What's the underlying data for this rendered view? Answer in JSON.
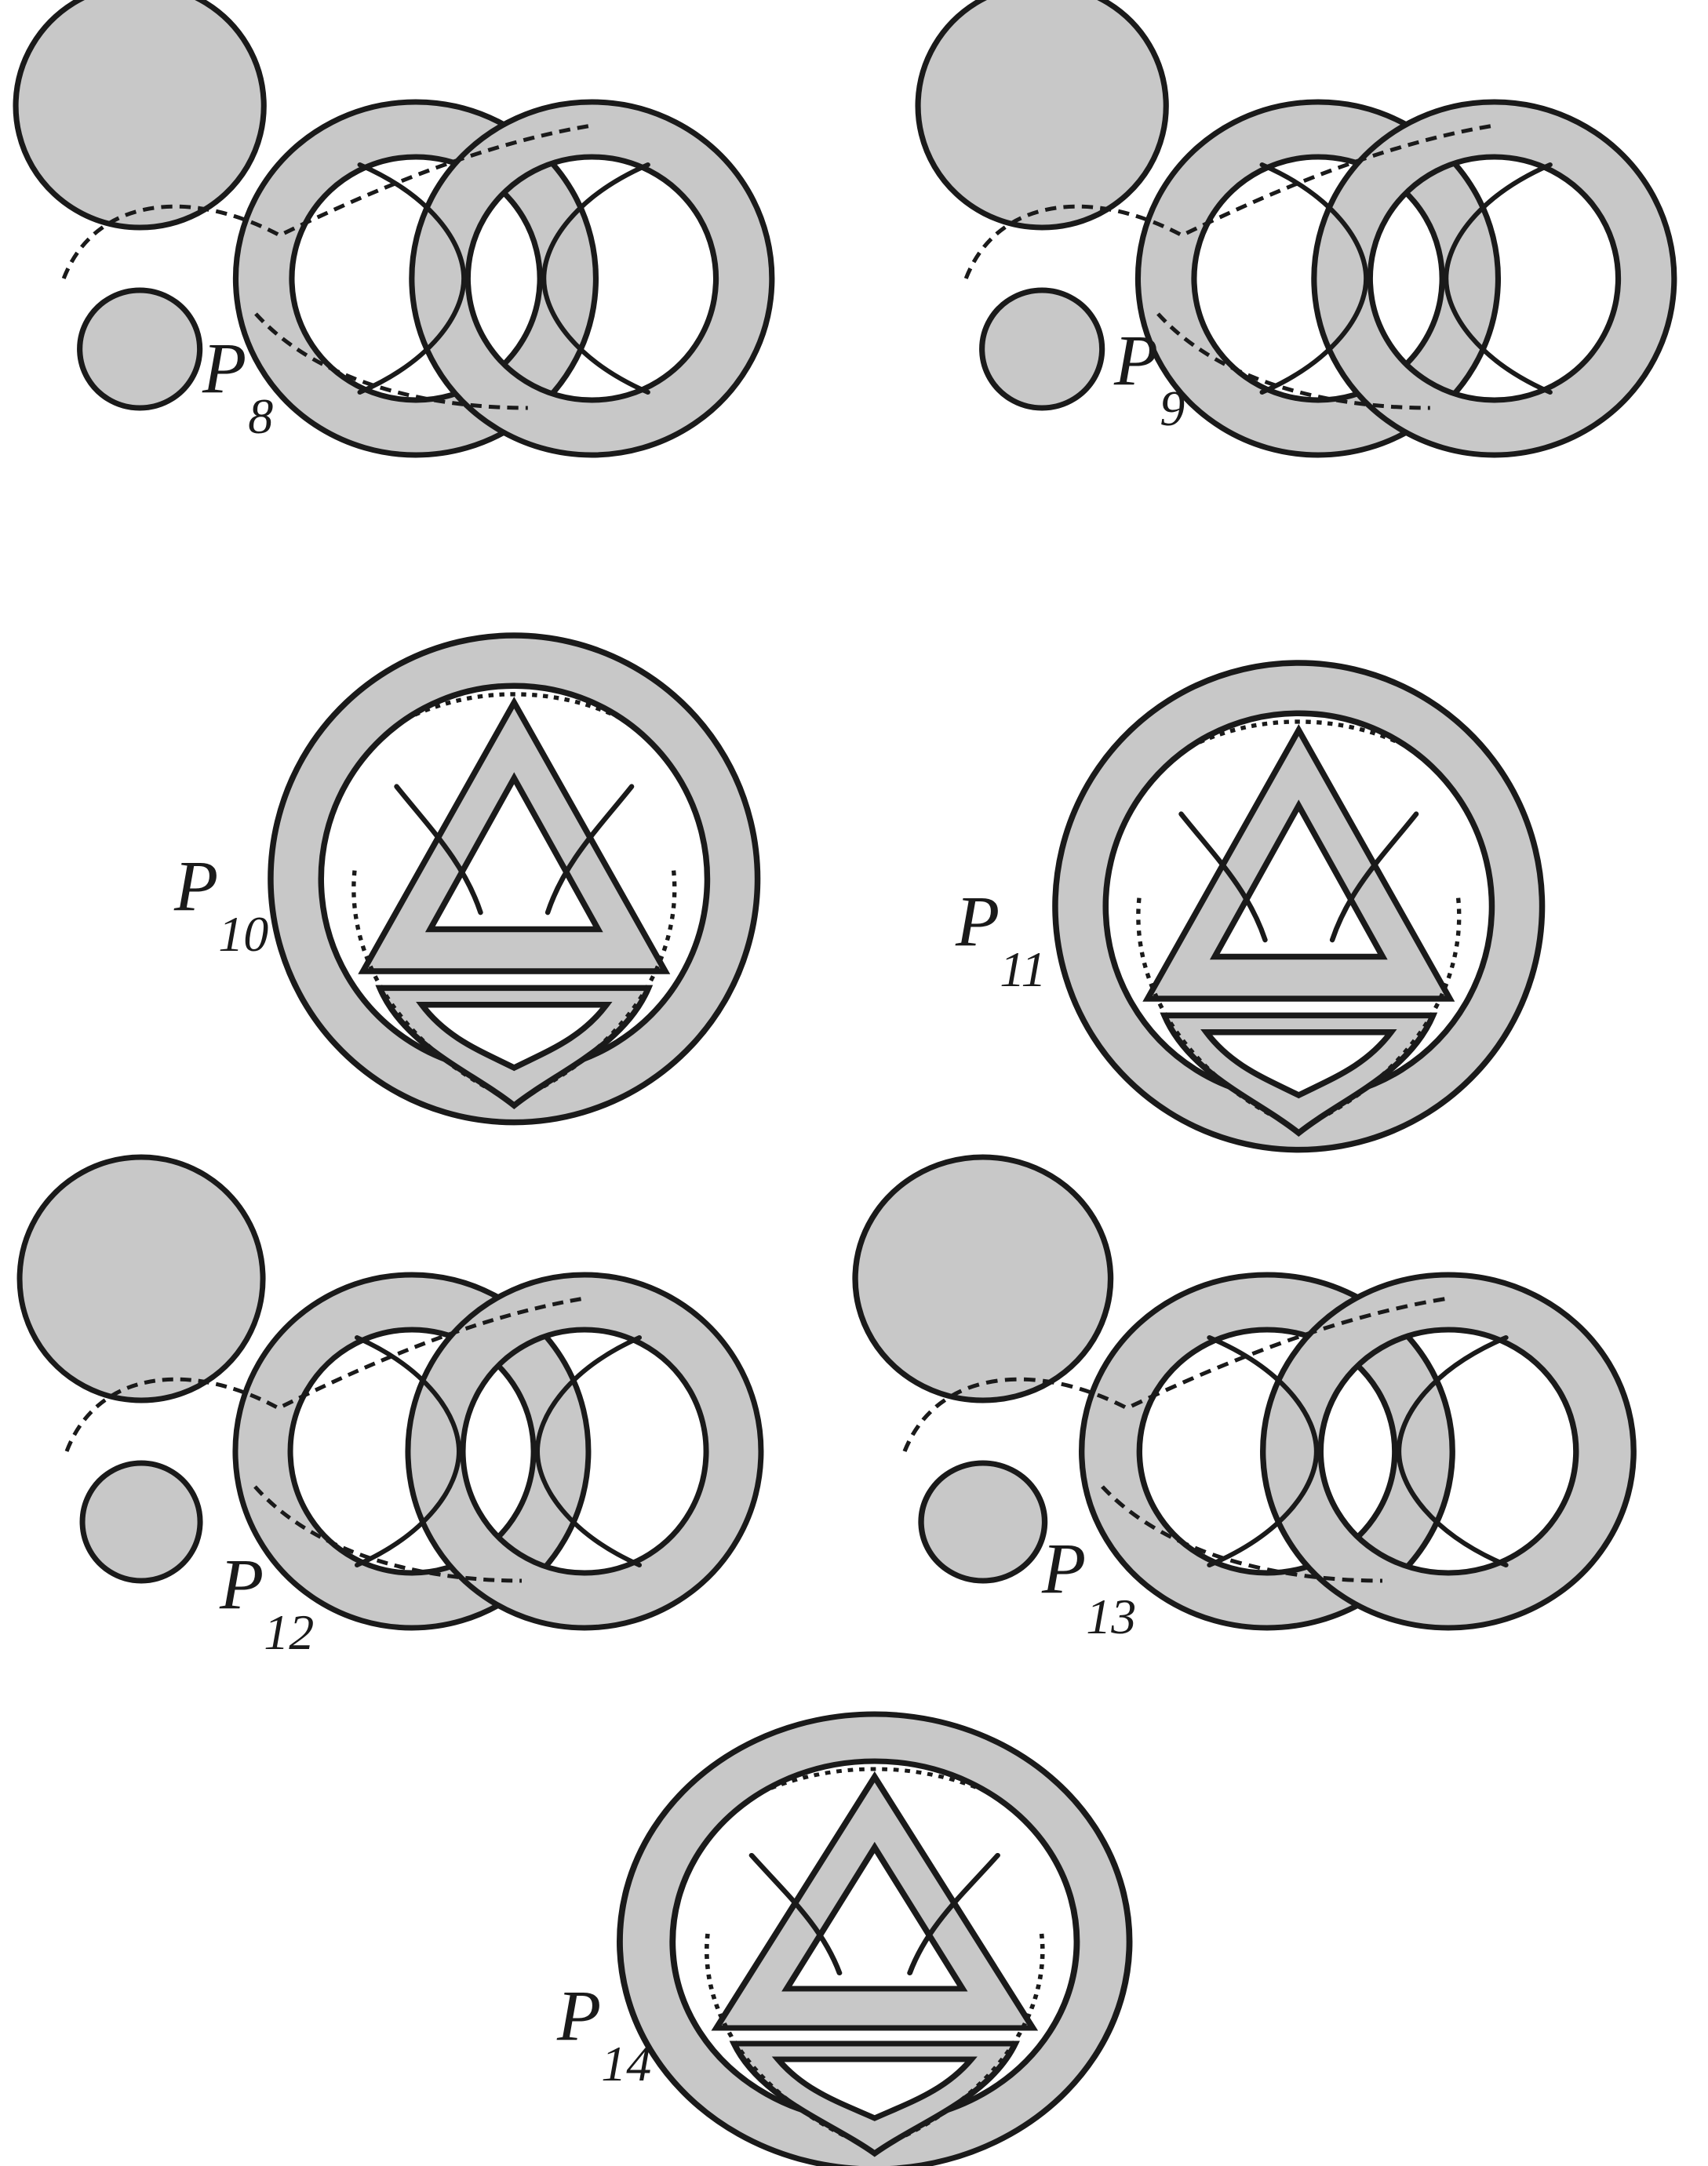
{
  "figure": {
    "panels": [
      {
        "id": "p8",
        "label": "P",
        "subscript": "8",
        "shape": "figure-eight"
      },
      {
        "id": "p9",
        "label": "P",
        "subscript": "9",
        "shape": "figure-eight"
      },
      {
        "id": "p10",
        "label": "P",
        "subscript": "10",
        "shape": "round"
      },
      {
        "id": "p11",
        "label": "P",
        "subscript": "11",
        "shape": "round"
      },
      {
        "id": "p12",
        "label": "P",
        "subscript": "12",
        "shape": "figure-eight"
      },
      {
        "id": "p13",
        "label": "P",
        "subscript": "13",
        "shape": "figure-eight"
      },
      {
        "id": "p14",
        "label": "P",
        "subscript": "14",
        "shape": "round"
      }
    ],
    "colors": {
      "band_fill": "#c8c8c8",
      "stroke": "#1a1a1a",
      "background": "#ffffff"
    }
  }
}
